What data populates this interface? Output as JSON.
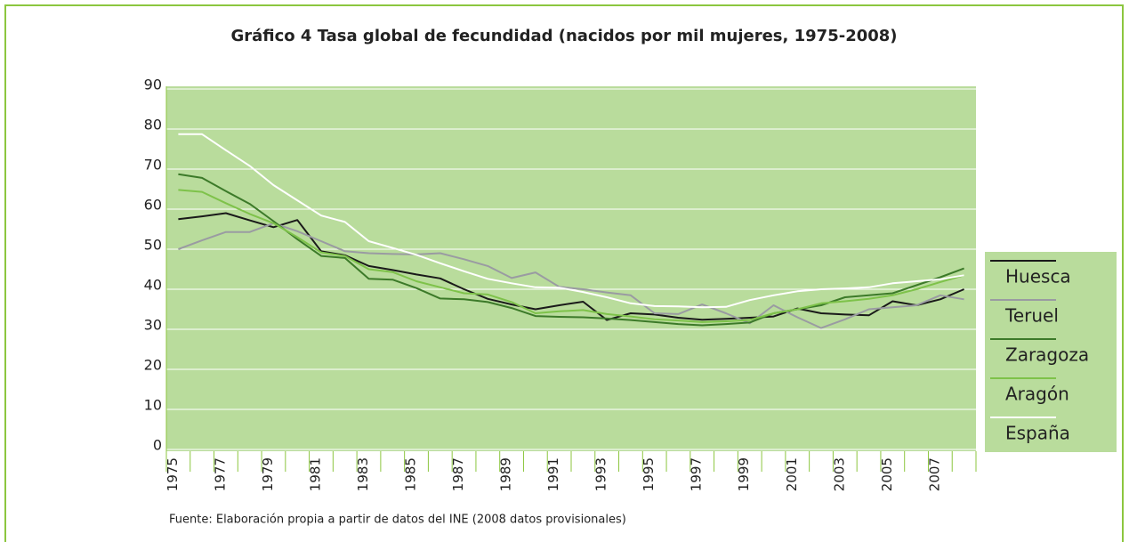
{
  "chart_data": {
    "type": "line",
    "title": "Gráfico 4 Tasa global de fecundidad (nacidos por mil mujeres, 1975-2008)",
    "source": "Fuente: Elaboración propia a partir de datos del INE (2008 datos provisionales)",
    "categories": [
      "1975",
      null,
      "1977",
      null,
      "1979",
      null,
      "1981",
      null,
      "1983",
      null,
      "1985",
      null,
      "1987",
      null,
      "1989",
      null,
      "1991",
      null,
      "1993",
      null,
      "1995",
      null,
      "1997",
      null,
      "1999",
      null,
      "2001",
      null,
      "2003",
      null,
      "2005",
      null,
      "2007",
      null
    ],
    "series": [
      {
        "name": "Huesca",
        "color": "#1a1a1a",
        "values": [
          57.5,
          58.2,
          59,
          57.2,
          55.5,
          57.3,
          49.5,
          48.5,
          45.8,
          44.8,
          43.7,
          42.7,
          40,
          37.6,
          36.2,
          35,
          36,
          36.9,
          32.3,
          34,
          33.7,
          32.9,
          32.4,
          32.6,
          32.9,
          33.2,
          35.2,
          34,
          33.7,
          33.5,
          37,
          36,
          37.5,
          40
        ]
      },
      {
        "name": "Teruel",
        "color": "#9a9ba2",
        "values": [
          50,
          52.2,
          54.3,
          54.3,
          56.5,
          54.5,
          52,
          49.5,
          49,
          48.8,
          48.7,
          49,
          47.5,
          45.8,
          42.8,
          44.2,
          40.6,
          40,
          39.2,
          38.5,
          34,
          33.8,
          36.2,
          34,
          31.5,
          36,
          33,
          30.3,
          32.5,
          35,
          35.5,
          36,
          38.5,
          37.5
        ]
      },
      {
        "name": "Zaragoza",
        "color": "#3c7a29",
        "values": [
          68.7,
          67.8,
          64.5,
          61.3,
          57,
          52.5,
          48.3,
          47.8,
          42.6,
          42.4,
          40.3,
          37.7,
          37.5,
          36.8,
          35.3,
          33.3,
          33.1,
          33,
          32.7,
          32.3,
          31.8,
          31.3,
          31,
          31.3,
          31.7,
          34,
          35,
          36,
          38,
          38.5,
          39,
          41,
          43,
          45.2
        ]
      },
      {
        "name": "Aragón",
        "color": "#7ec24a",
        "values": [
          64.8,
          64.3,
          61.5,
          58.8,
          56.5,
          53,
          49.2,
          48.3,
          45,
          44.3,
          42,
          40.5,
          39,
          38.7,
          36.8,
          34,
          34.5,
          34.8,
          33.8,
          33.2,
          32.5,
          32.2,
          31.8,
          32,
          32.3,
          34,
          35,
          36.5,
          37,
          37.6,
          38.5,
          40,
          41.8,
          43.5
        ]
      },
      {
        "name": "España",
        "color": "#ffffff",
        "values": [
          78.7,
          78.7,
          74.7,
          70.8,
          66,
          62.2,
          58.4,
          56.8,
          52,
          50.3,
          48.6,
          46.5,
          44.5,
          42.6,
          41.5,
          40.5,
          40.4,
          39.3,
          38,
          36.5,
          35.8,
          35.7,
          35.5,
          35.6,
          37.3,
          38.5,
          39.5,
          40,
          40.2,
          40.5,
          41.5,
          42,
          42.5,
          43.5
        ]
      }
    ],
    "ylim": [
      0,
      90
    ],
    "yticks": [
      0,
      10,
      20,
      30,
      40,
      50,
      60,
      70,
      80,
      90
    ],
    "grid": true,
    "legend": "right"
  }
}
